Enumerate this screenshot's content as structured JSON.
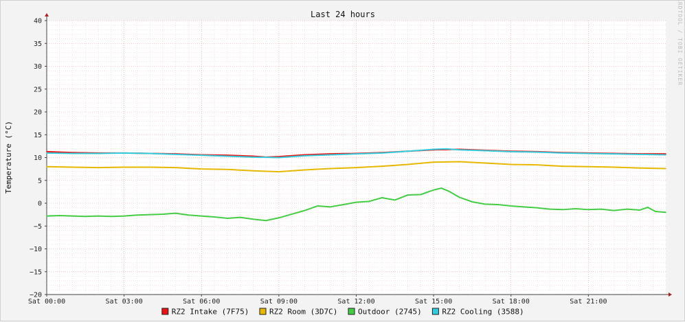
{
  "chart_data": {
    "type": "line",
    "title": "Last 24 hours",
    "ylabel": "Temperature (°C)",
    "xlabel": "",
    "watermark": "RRDTOOL / TOBI OETIKER",
    "ylim": [
      -20,
      40
    ],
    "xlim": [
      0,
      24
    ],
    "yticks": [
      {
        "value": 40,
        "label": "40"
      },
      {
        "value": 35,
        "label": "35"
      },
      {
        "value": 30,
        "label": "30"
      },
      {
        "value": 25,
        "label": "25"
      },
      {
        "value": 20,
        "label": "20"
      },
      {
        "value": 15,
        "label": "15"
      },
      {
        "value": 10,
        "label": "10"
      },
      {
        "value": 5,
        "label": "5"
      },
      {
        "value": 0,
        "label": "0"
      },
      {
        "value": -5,
        "label": "−5"
      },
      {
        "value": -10,
        "label": "−10"
      },
      {
        "value": -15,
        "label": "−15"
      },
      {
        "value": -20,
        "label": "−20"
      }
    ],
    "xticks": [
      {
        "value": 0,
        "label": "Sat 00:00"
      },
      {
        "value": 3,
        "label": "Sat 03:00"
      },
      {
        "value": 6,
        "label": "Sat 06:00"
      },
      {
        "value": 9,
        "label": "Sat 09:00"
      },
      {
        "value": 12,
        "label": "Sat 12:00"
      },
      {
        "value": 15,
        "label": "Sat 15:00"
      },
      {
        "value": 18,
        "label": "Sat 18:00"
      },
      {
        "value": 21,
        "label": "Sat 21:00"
      }
    ],
    "grid": true,
    "legend_position": "bottom",
    "series": [
      {
        "name": "RZ2 Intake (7F75)",
        "color": "#ee1111",
        "x": [
          0,
          1,
          2,
          3,
          4,
          5,
          6,
          7,
          8,
          8.5,
          9,
          10,
          11,
          12,
          13,
          14,
          15,
          16,
          17,
          18,
          19,
          20,
          21,
          22,
          23,
          24
        ],
        "y": [
          11.3,
          11.1,
          11.0,
          11.0,
          10.9,
          10.8,
          10.6,
          10.5,
          10.3,
          10.1,
          10.2,
          10.6,
          10.8,
          10.9,
          11.1,
          11.4,
          11.7,
          11.8,
          11.6,
          11.4,
          11.3,
          11.1,
          11.0,
          10.9,
          10.8,
          10.8
        ]
      },
      {
        "name": "RZ2 Room (3D7C)",
        "color": "#e6b800",
        "x": [
          0,
          1,
          2,
          3,
          4,
          5,
          6,
          7,
          8,
          9,
          10,
          11,
          12,
          13,
          14,
          15,
          16,
          17,
          18,
          19,
          20,
          21,
          22,
          23,
          24
        ],
        "y": [
          8.0,
          7.9,
          7.8,
          7.9,
          7.9,
          7.8,
          7.5,
          7.4,
          7.1,
          6.9,
          7.3,
          7.6,
          7.8,
          8.1,
          8.5,
          9.0,
          9.1,
          8.8,
          8.5,
          8.4,
          8.1,
          8.0,
          7.9,
          7.7,
          7.6
        ]
      },
      {
        "name": "Outdoor (2745)",
        "color": "#44cc44",
        "x": [
          0,
          0.5,
          1,
          1.5,
          2,
          2.5,
          3,
          3.5,
          4,
          4.5,
          5,
          5.5,
          6,
          6.5,
          7,
          7.5,
          8,
          8.5,
          9,
          9.5,
          10,
          10.5,
          11,
          11.5,
          12,
          12.5,
          13,
          13.5,
          14,
          14.5,
          15,
          15.3,
          15.6,
          16,
          16.5,
          17,
          17.5,
          18,
          18.5,
          19,
          19.5,
          20,
          20.5,
          21,
          21.5,
          22,
          22.5,
          23,
          23.3,
          23.6,
          24
        ],
        "y": [
          -2.8,
          -2.7,
          -2.8,
          -2.9,
          -2.8,
          -2.9,
          -2.8,
          -2.6,
          -2.5,
          -2.4,
          -2.2,
          -2.6,
          -2.8,
          -3.0,
          -3.3,
          -3.1,
          -3.5,
          -3.8,
          -3.2,
          -2.4,
          -1.6,
          -0.6,
          -0.8,
          -0.3,
          0.2,
          0.4,
          1.2,
          0.7,
          1.8,
          1.9,
          2.9,
          3.3,
          2.6,
          1.3,
          0.3,
          -0.2,
          -0.3,
          -0.6,
          -0.8,
          -1.0,
          -1.3,
          -1.4,
          -1.2,
          -1.4,
          -1.3,
          -1.6,
          -1.3,
          -1.5,
          -0.9,
          -1.8,
          -2.0
        ]
      },
      {
        "name": "RZ2 Cooling (3588)",
        "color": "#33ccdd",
        "x": [
          0,
          1,
          2,
          3,
          4,
          5,
          6,
          7,
          8,
          9,
          10,
          11,
          12,
          13,
          14,
          15,
          15.5,
          16,
          17,
          18,
          19,
          20,
          21,
          22,
          23,
          24
        ],
        "y": [
          11.0,
          10.9,
          10.9,
          11.0,
          10.9,
          10.7,
          10.5,
          10.3,
          10.1,
          10.0,
          10.4,
          10.6,
          10.8,
          11.0,
          11.4,
          11.8,
          11.9,
          11.7,
          11.5,
          11.3,
          11.2,
          11.0,
          10.9,
          10.8,
          10.7,
          10.6
        ]
      }
    ]
  }
}
